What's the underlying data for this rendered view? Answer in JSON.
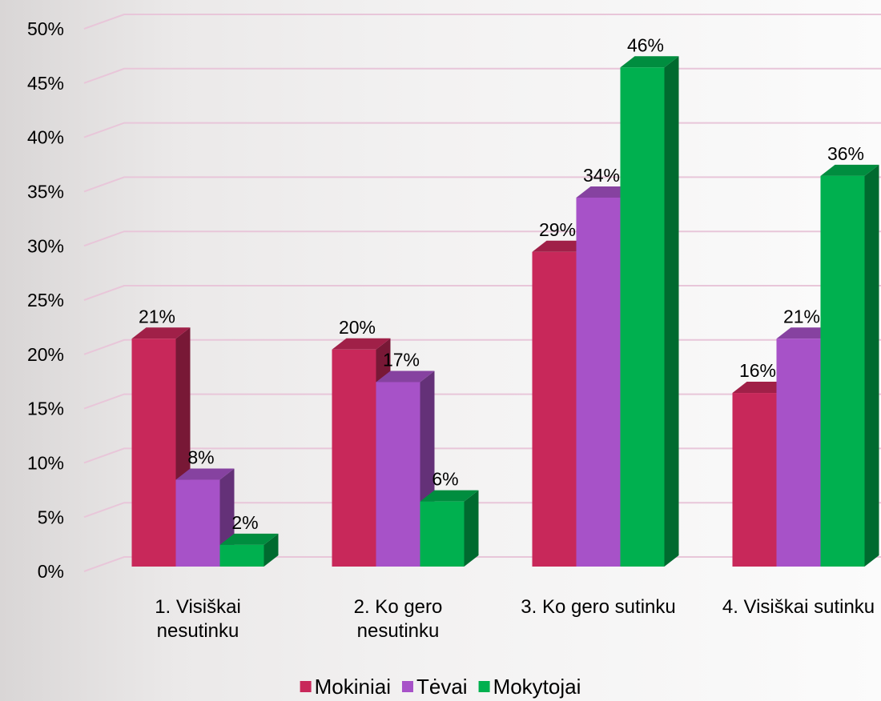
{
  "chart_data": {
    "type": "bar3d",
    "categories": [
      "1. Visiškai nesutinku",
      "2. Ko gero nesutinku",
      "3. Ko gero sutinku",
      "4. Visiškai sutinku"
    ],
    "series": [
      {
        "name": "Mokiniai",
        "color": "#c8285a",
        "values": [
          21,
          20,
          29,
          16
        ],
        "value_labels": [
          "21%",
          "20%",
          "29%",
          "16%"
        ]
      },
      {
        "name": "Tėvai",
        "color": "#a752c8",
        "values": [
          8,
          17,
          34,
          21
        ],
        "value_labels": [
          "8%",
          "17%",
          "34%",
          "21%"
        ]
      },
      {
        "name": "Mokytojai",
        "color": "#00b04f",
        "values": [
          2,
          6,
          46,
          36
        ],
        "value_labels": [
          "2%",
          "6%",
          "46%",
          "36%"
        ]
      }
    ],
    "ylim": [
      0,
      50
    ],
    "yticks": [
      {
        "value": 0,
        "label": "0%"
      },
      {
        "value": 5,
        "label": "5%"
      },
      {
        "value": 10,
        "label": "10%"
      },
      {
        "value": 15,
        "label": "15%"
      },
      {
        "value": 20,
        "label": "20%"
      },
      {
        "value": 25,
        "label": "25%"
      },
      {
        "value": 30,
        "label": "30%"
      },
      {
        "value": 35,
        "label": "35%"
      },
      {
        "value": 40,
        "label": "40%"
      },
      {
        "value": 45,
        "label": "45%"
      },
      {
        "value": 50,
        "label": "50%"
      }
    ],
    "grid": true,
    "legend": "bottom"
  }
}
